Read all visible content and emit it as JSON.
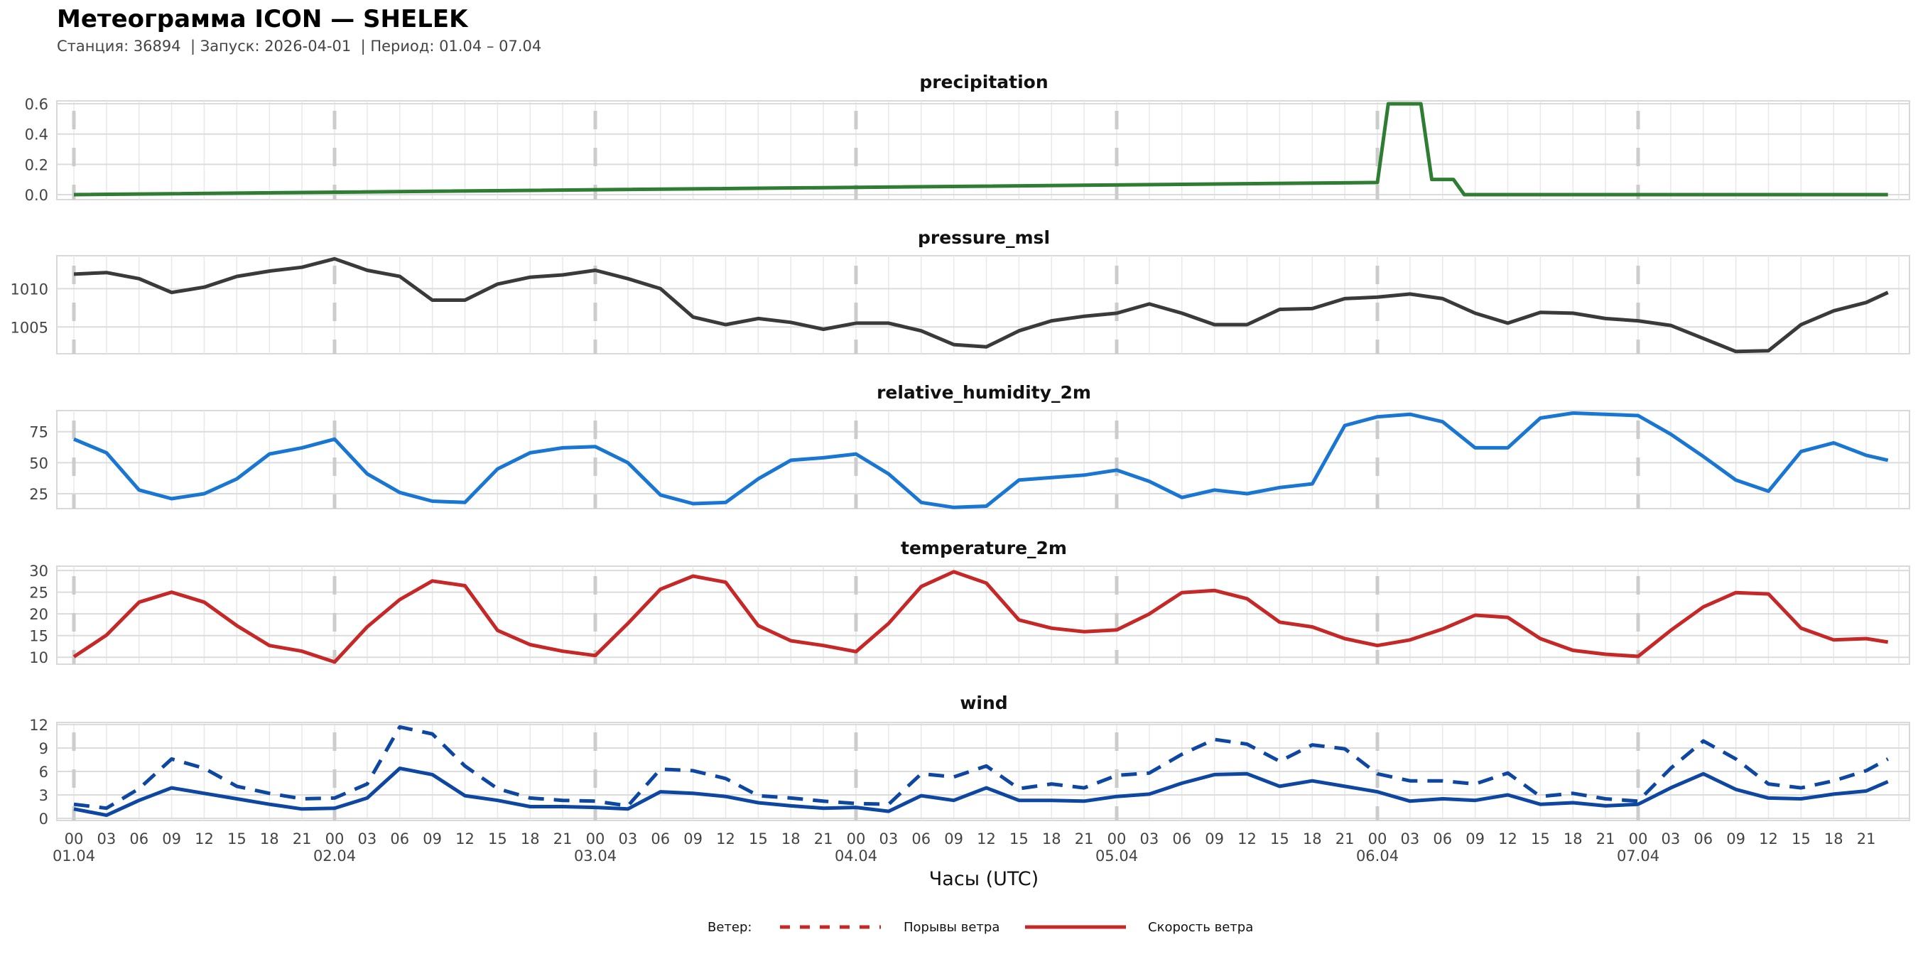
{
  "header": {
    "title": "Метеограмма ICON — SHELEK",
    "subtitle": "Станция: 36894  | Запуск: 2026-04-01  | Период: 01.04 – 07.04"
  },
  "x_axis": {
    "label": "Часы (UTC)",
    "tick_labels": [
      "00",
      "03",
      "06",
      "09",
      "12",
      "15",
      "18",
      "21"
    ],
    "dates": [
      "01.04",
      "02.04",
      "03.04",
      "04.04",
      "05.04",
      "06.04",
      "07.04"
    ],
    "day_line_color": "#cccccc"
  },
  "legend": {
    "title": "Ветер:",
    "gust_label": "Порывы ветра",
    "speed_label": "Скорость ветра",
    "color": "#c62828"
  },
  "x_hours": [
    0,
    3,
    6,
    9,
    12,
    15,
    18,
    21,
    24,
    27,
    30,
    33,
    36,
    39,
    42,
    45,
    48,
    51,
    54,
    57,
    60,
    63,
    66,
    69,
    72,
    75,
    78,
    81,
    84,
    87,
    90,
    93,
    96,
    99,
    102,
    105,
    108,
    111,
    114,
    117,
    120,
    123,
    126,
    129,
    132,
    135,
    138,
    141,
    144,
    147,
    150,
    153,
    156,
    159,
    162,
    165,
    167
  ],
  "chart_data": [
    {
      "type": "line",
      "title": "precipitation",
      "xlabel": "Часы (UTC)",
      "ylabel": "",
      "ylim": [
        -0.033,
        0.619
      ],
      "grid": true,
      "yticks": [
        0,
        0.2,
        0.4,
        0.6
      ],
      "ytick_labels": [
        "0.0",
        "0.2",
        "0.4",
        "0.6"
      ],
      "series": [
        {
          "name": "precipitation",
          "color": "#2e7d32",
          "dashed": false,
          "x": [
            0,
            120,
            121,
            124,
            125,
            127,
            128,
            167
          ],
          "values": [
            0,
            0.08,
            0.6,
            0.6,
            0.1,
            0.1,
            0,
            0
          ]
        }
      ]
    },
    {
      "type": "line",
      "title": "pressure_msl",
      "xlabel": "Часы (UTC)",
      "ylabel": "",
      "ylim": [
        1001.5,
        1014.3
      ],
      "grid": true,
      "yticks": [
        1005,
        1010
      ],
      "ytick_labels": [
        "1005",
        "1010"
      ],
      "series": [
        {
          "name": "pressure_msl",
          "color": "#3a3a3a",
          "dashed": false,
          "values": [
            1011.9,
            1012.1,
            1011.3,
            1009.5,
            1010.2,
            1011.6,
            1012.3,
            1012.8,
            1013.9,
            1012.4,
            1011.6,
            1008.5,
            1008.5,
            1010.6,
            1011.5,
            1011.8,
            1012.4,
            1011.3,
            1010.0,
            1006.3,
            1005.3,
            1006.1,
            1005.6,
            1004.7,
            1005.5,
            1005.5,
            1004.5,
            1002.7,
            1002.4,
            1004.5,
            1005.8,
            1006.4,
            1006.8,
            1008.0,
            1006.8,
            1005.3,
            1005.3,
            1007.3,
            1007.4,
            1008.7,
            1008.9,
            1009.3,
            1008.7,
            1006.8,
            1005.5,
            1006.9,
            1006.8,
            1006.1,
            1005.8,
            1005.2,
            1003.5,
            1001.8,
            1001.9,
            1005.3,
            1007.1,
            1008.2,
            1009.5
          ]
        }
      ]
    },
    {
      "type": "line",
      "title": "relative_humidity_2m",
      "xlabel": "Часы (UTC)",
      "ylabel": "",
      "ylim": [
        13,
        92
      ],
      "grid": true,
      "yticks": [
        25,
        50,
        75
      ],
      "ytick_labels": [
        "25",
        "50",
        "75"
      ],
      "series": [
        {
          "name": "relative_humidity_2m",
          "color": "#1976d2",
          "dashed": false,
          "values": [
            69,
            58,
            28,
            21,
            25,
            37,
            57,
            62,
            69,
            41,
            26,
            19,
            18,
            45,
            58,
            62,
            63,
            50,
            24,
            17,
            18,
            37,
            52,
            54,
            57,
            41,
            18,
            14,
            15,
            36,
            38,
            40,
            44,
            35,
            22,
            28,
            25,
            30,
            33,
            80,
            87,
            89,
            83,
            62,
            62,
            86,
            90,
            89,
            88,
            73,
            55,
            36,
            27,
            59,
            66,
            56,
            52
          ]
        }
      ]
    },
    {
      "type": "line",
      "title": "temperature_2m",
      "xlabel": "Часы (UTC)",
      "ylabel": "",
      "ylim": [
        8.4,
        31.0
      ],
      "grid": true,
      "yticks": [
        10,
        15,
        20,
        25,
        30
      ],
      "ytick_labels": [
        "10",
        "15",
        "20",
        "25",
        "30"
      ],
      "series": [
        {
          "name": "temperature_2m",
          "color": "#c62828",
          "dashed": false,
          "values": [
            10.1,
            15.1,
            22.7,
            25.0,
            22.7,
            17.3,
            12.7,
            11.4,
            8.9,
            17.0,
            23.3,
            27.6,
            26.5,
            16.2,
            12.9,
            11.4,
            10.4,
            17.8,
            25.7,
            28.7,
            27.3,
            17.3,
            13.8,
            12.7,
            11.3,
            17.8,
            26.3,
            29.7,
            27.1,
            18.6,
            16.7,
            15.9,
            16.3,
            20.0,
            24.9,
            25.4,
            23.5,
            18.1,
            17.0,
            14.3,
            12.7,
            14.0,
            16.5,
            19.7,
            19.2,
            14.3,
            11.6,
            10.7,
            10.2,
            16.2,
            21.6,
            24.9,
            24.6,
            16.7,
            14.0,
            14.3,
            13.5
          ]
        }
      ]
    },
    {
      "type": "line",
      "title": "wind",
      "xlabel": "Часы (UTC)",
      "ylabel": "",
      "ylim": [
        -0.27,
        12.27
      ],
      "grid": true,
      "yticks": [
        0,
        3,
        6,
        9,
        12
      ],
      "ytick_labels": [
        "0",
        "3",
        "6",
        "9",
        "12"
      ],
      "series": [
        {
          "name": "Порывы ветра",
          "color": "#0d47a1",
          "dashed": true,
          "values": [
            1.8,
            1.3,
            3.8,
            7.6,
            6.4,
            4.1,
            3.2,
            2.5,
            2.6,
            4.4,
            11.7,
            10.8,
            6.7,
            3.8,
            2.6,
            2.3,
            2.2,
            1.6,
            6.3,
            6.1,
            5.1,
            2.9,
            2.6,
            2.2,
            1.9,
            1.8,
            5.7,
            5.3,
            6.7,
            3.8,
            4.4,
            3.9,
            5.5,
            5.8,
            8.2,
            10.1,
            9.5,
            7.3,
            9.4,
            8.9,
            5.7,
            4.8,
            4.8,
            4.4,
            5.8,
            2.8,
            3.2,
            2.5,
            2.2,
            6.4,
            9.9,
            7.6,
            4.4,
            3.9,
            4.8,
            6.1,
            7.6
          ]
        },
        {
          "name": "Скорость ветра",
          "color": "#0d47a1",
          "dashed": false,
          "values": [
            1.2,
            0.4,
            2.3,
            3.9,
            3.2,
            2.5,
            1.8,
            1.2,
            1.3,
            2.6,
            6.4,
            5.6,
            2.9,
            2.3,
            1.5,
            1.5,
            1.4,
            1.2,
            3.4,
            3.2,
            2.8,
            2.0,
            1.6,
            1.3,
            1.4,
            0.9,
            2.9,
            2.3,
            3.9,
            2.3,
            2.3,
            2.2,
            2.8,
            3.1,
            4.5,
            5.6,
            5.7,
            4.1,
            4.8,
            4.1,
            3.4,
            2.2,
            2.5,
            2.3,
            3.0,
            1.8,
            2.0,
            1.6,
            1.8,
            3.9,
            5.7,
            3.7,
            2.6,
            2.5,
            3.1,
            3.5,
            4.7
          ]
        }
      ]
    }
  ]
}
